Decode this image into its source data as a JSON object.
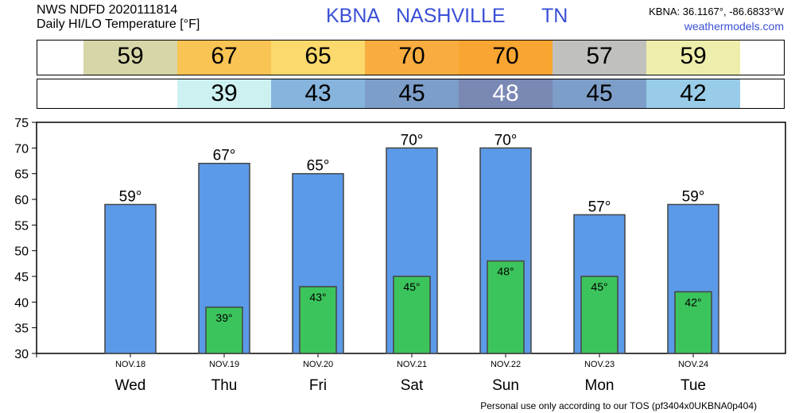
{
  "header": {
    "line1": "NWS NDFD 2020111814",
    "line2": "Daily HI/LO Temperature [°F]",
    "station": "KBNA",
    "city": "NASHVILLE",
    "state": "TN",
    "coords": "KBNA: 36.1167°, -86.6833°W",
    "site": "weathermodels.com"
  },
  "footer": "Personal use only according to our TOS (pf3404x0UKBNA0p404)",
  "degree_symbol": "°",
  "hi_strip": [
    {
      "value": "59",
      "color": "#d6d6a8",
      "text_color": "#000000"
    },
    {
      "value": "67",
      "color": "#f9c454",
      "text_color": "#000000"
    },
    {
      "value": "65",
      "color": "#fbd96c",
      "text_color": "#000000"
    },
    {
      "value": "70",
      "color": "#f9ad40",
      "text_color": "#000000"
    },
    {
      "value": "70",
      "color": "#f9a532",
      "text_color": "#000000"
    },
    {
      "value": "57",
      "color": "#c0c0bd",
      "text_color": "#000000"
    },
    {
      "value": "59",
      "color": "#eeeeac",
      "text_color": "#000000"
    }
  ],
  "lo_strip": [
    {
      "value": "39",
      "color": "#cdf1f1",
      "text_color": "#000000"
    },
    {
      "value": "43",
      "color": "#86b4dc",
      "text_color": "#000000"
    },
    {
      "value": "45",
      "color": "#7c9ec8",
      "text_color": "#000000"
    },
    {
      "value": "48",
      "color": "#7a88b4",
      "text_color": "#ffffff"
    },
    {
      "value": "45",
      "color": "#7c9ec8",
      "text_color": "#000000"
    },
    {
      "value": "42",
      "color": "#98cce8",
      "text_color": "#000000"
    }
  ],
  "chart_data": {
    "type": "bar",
    "categories": [
      "NOV.18",
      "NOV.19",
      "NOV.20",
      "NOV.21",
      "NOV.22",
      "NOV.23",
      "NOV.24"
    ],
    "days": [
      "Wed",
      "Thu",
      "Fri",
      "Sat",
      "Sun",
      "Mon",
      "Tue"
    ],
    "series": [
      {
        "values": [
          59,
          67,
          65,
          70,
          70,
          57,
          59
        ],
        "color": "#5b9ae8"
      },
      {
        "values": [
          null,
          39,
          43,
          45,
          48,
          45,
          42
        ],
        "color": "#3cc45c"
      }
    ],
    "ylim": [
      30,
      75
    ],
    "yticks": [
      30,
      35,
      40,
      45,
      50,
      55,
      60,
      65,
      70,
      75
    ],
    "grid": false
  }
}
